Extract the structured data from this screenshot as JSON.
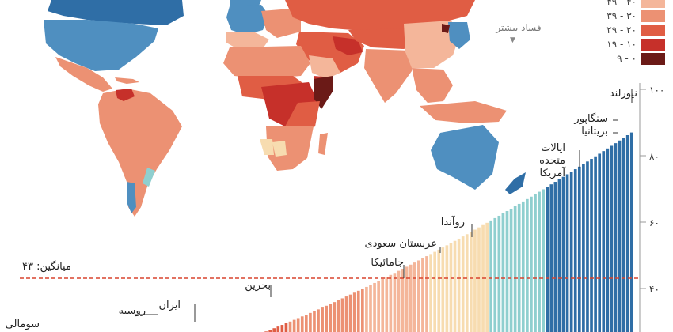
{
  "legend": {
    "items": [
      {
        "label": "۴۰ - ۴۹",
        "color": "#f4b69a"
      },
      {
        "label": "۳۰ - ۳۹",
        "color": "#ec9173"
      },
      {
        "label": "۲۰ - ۲۹",
        "color": "#e05d44"
      },
      {
        "label": "۱۰ - ۱۹",
        "color": "#c6302a"
      },
      {
        "label": "۰ - ۹",
        "color": "#6b1a17"
      }
    ],
    "more_corruption": "فساد بیشتر",
    "arrow": "▼"
  },
  "chart_data": {
    "type": "bar",
    "yticks": [
      "۱۰۰",
      "۸۰",
      "۶۰",
      "۴۰"
    ],
    "ytick_values": [
      100,
      80,
      60,
      40
    ],
    "ylim": [
      30,
      100
    ],
    "average": {
      "label": "میانگین: ۴۳",
      "value": 43
    },
    "labeled_countries": [
      {
        "name": "نیوزلند",
        "value": 87
      },
      {
        "name": "سنگاپور",
        "value": 85
      },
      {
        "name": "بریتانیا",
        "value": 82
      },
      {
        "name": "ایالات",
        "value": 75
      },
      {
        "name": "متحده",
        "value": 75
      },
      {
        "name": "آمریکا",
        "value": 75
      },
      {
        "name": "روآندا",
        "value": 53
      },
      {
        "name": "عربستان سعودی",
        "value": 49
      },
      {
        "name": "جامائیکا",
        "value": 44
      },
      {
        "name": "بحرین",
        "value": 42
      },
      {
        "name": "ایران",
        "value": 25
      },
      {
        "name": "روسیه",
        "value": 28
      },
      {
        "name": "سومالی",
        "value": 9
      }
    ]
  },
  "colors": {
    "ocean": "#ffffff",
    "blue_dark": "#2f6ea6",
    "blue_mid": "#4f8fc0",
    "teal": "#8fcfcf",
    "cream": "#f7dcb0",
    "peach": "#f4b69a",
    "salmon": "#ec9173",
    "red": "#e05d44",
    "dark_red": "#c6302a",
    "maroon": "#6b1a17",
    "avg_line": "#d9432e"
  }
}
